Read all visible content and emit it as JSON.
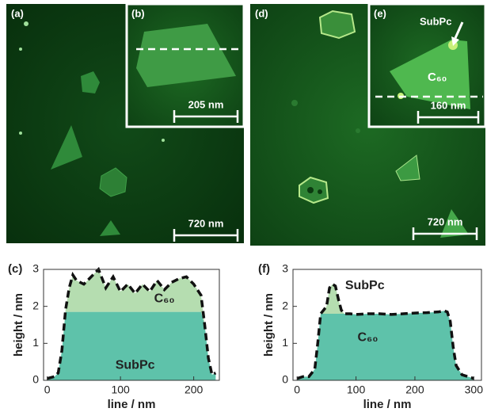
{
  "panels": {
    "a": "(a)",
    "b": "(b)",
    "d": "(d)",
    "e": "(e)"
  },
  "scale_bars": {
    "a": "720 nm",
    "b": "205 nm",
    "d": "720 nm",
    "e": "160 nm"
  },
  "annotations": {
    "subpc": "SubPc",
    "c60": "C₆₀"
  },
  "chart_data": [
    {
      "type": "area",
      "panel_label": "(c)",
      "xlabel": "line / nm",
      "ylabel": "height / nm",
      "stacked": true,
      "outline_style": "dashed",
      "x": [
        0,
        10,
        15,
        20,
        25,
        30,
        35,
        40,
        50,
        60,
        70,
        80,
        90,
        100,
        110,
        120,
        130,
        140,
        150,
        160,
        170,
        180,
        190,
        200,
        210,
        215,
        220,
        225,
        230
      ],
      "series": [
        {
          "name": "C₆₀",
          "color": "#5ec2aa",
          "values": [
            0.05,
            0.1,
            0.2,
            0.8,
            1.85,
            1.85,
            1.85,
            1.85,
            1.85,
            1.85,
            1.85,
            1.85,
            1.85,
            1.85,
            1.85,
            1.85,
            1.85,
            1.85,
            1.85,
            1.85,
            1.85,
            1.85,
            1.85,
            1.85,
            1.85,
            1.5,
            0.6,
            0.15,
            0.2
          ]
        },
        {
          "name": "SubPc",
          "color": "#b5ddb0",
          "values": [
            0,
            0,
            0,
            0,
            0.05,
            0.65,
            1.0,
            0.85,
            0.75,
            0.95,
            1.15,
            0.65,
            0.95,
            0.55,
            0.75,
            0.5,
            0.75,
            0.55,
            0.85,
            0.6,
            0.8,
            0.9,
            0.95,
            0.75,
            0.45,
            0,
            0,
            0,
            0
          ]
        }
      ],
      "xlim": [
        -5,
        235
      ],
      "xticks": [
        0,
        100,
        200
      ],
      "ylim": [
        0,
        3
      ],
      "yticks": [
        0,
        1,
        2,
        3
      ]
    },
    {
      "type": "area",
      "panel_label": "(f)",
      "xlabel": "line / nm",
      "ylabel": "height / nm",
      "stacked": true,
      "outline_style": "dashed",
      "x": [
        0,
        10,
        20,
        30,
        35,
        40,
        50,
        55,
        60,
        65,
        70,
        75,
        80,
        90,
        100,
        120,
        140,
        160,
        180,
        200,
        220,
        240,
        250,
        255,
        260,
        265,
        270,
        280,
        290,
        300
      ],
      "series": [
        {
          "name": "C₆₀",
          "color": "#5ec2aa",
          "values": [
            0.05,
            0.1,
            0.1,
            0.3,
            1.0,
            1.8,
            1.8,
            1.8,
            1.8,
            1.8,
            1.8,
            1.8,
            1.8,
            1.8,
            1.78,
            1.8,
            1.8,
            1.78,
            1.8,
            1.82,
            1.83,
            1.85,
            1.88,
            1.85,
            1.6,
            0.9,
            0.4,
            0.15,
            0.1,
            0.05
          ]
        },
        {
          "name": "SubPc",
          "color": "#b5ddb0",
          "values": [
            0,
            0,
            0,
            0,
            0,
            0,
            0.2,
            0.7,
            0.8,
            0.75,
            0.4,
            0.1,
            0,
            0,
            0,
            0,
            0,
            0,
            0,
            0,
            0,
            0,
            0,
            0,
            0,
            0,
            0,
            0,
            0,
            0
          ]
        }
      ],
      "xlim": [
        -7,
        313
      ],
      "xticks": [
        0,
        100,
        200,
        300
      ],
      "ylim": [
        0,
        3
      ],
      "yticks": [
        0,
        1,
        2,
        3
      ]
    }
  ]
}
